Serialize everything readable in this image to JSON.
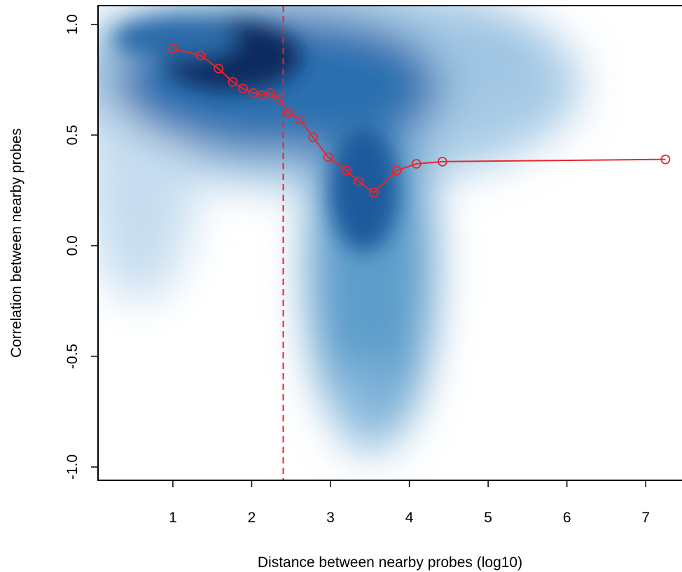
{
  "chart_data": {
    "type": "line",
    "x_label": "Distance between nearby probes (log10)",
    "y_label": "Correlation between nearby probes",
    "xlim": [
      0.05,
      7.46
    ],
    "ylim": [
      -1.06,
      1.085
    ],
    "xticks": [
      1,
      2,
      3,
      4,
      5,
      6,
      7
    ],
    "yticks": [
      {
        "value": 1,
        "label": "1.0"
      },
      {
        "value": 0.5,
        "label": "0.5"
      },
      {
        "value": 0,
        "label": "0.0"
      },
      {
        "value": -0.5,
        "label": "-0.5"
      },
      {
        "value": -1,
        "label": "-1.0"
      }
    ],
    "x": [
      1.0,
      1.35,
      1.58,
      1.76,
      1.89,
      2.02,
      2.13,
      2.24,
      2.35,
      2.47,
      2.61,
      2.78,
      2.97,
      3.2,
      3.36,
      3.55,
      3.84,
      4.09,
      4.42,
      7.25
    ],
    "series": [
      {
        "color": "#e8262e",
        "values": [
          0.89,
          0.86,
          0.8,
          0.74,
          0.71,
          0.69,
          0.68,
          0.69,
          0.66,
          0.6,
          0.57,
          0.49,
          0.4,
          0.34,
          0.29,
          0.24,
          0.34,
          0.37,
          0.38,
          0.39
        ]
      }
    ],
    "vline": {
      "value": 2.4,
      "color": "#e8262e"
    }
  }
}
